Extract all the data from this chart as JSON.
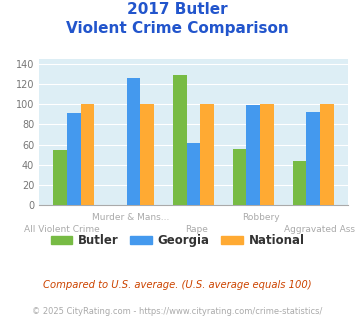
{
  "title_line1": "2017 Butler",
  "title_line2": "Violent Crime Comparison",
  "categories": [
    "All Violent Crime",
    "Murder & Mans...",
    "Rape",
    "Robbery",
    "Aggravated Assault"
  ],
  "butler": [
    55,
    0,
    129,
    56,
    44
  ],
  "georgia": [
    91,
    126,
    62,
    99,
    92
  ],
  "national": [
    100,
    100,
    100,
    100,
    100
  ],
  "butler_color": "#77bb44",
  "georgia_color": "#4499ee",
  "national_color": "#ffaa33",
  "ylim": [
    0,
    145
  ],
  "yticks": [
    0,
    20,
    40,
    60,
    80,
    100,
    120,
    140
  ],
  "bg_color": "#ddeef5",
  "title_color": "#2255cc",
  "xlabel_color": "#aaaaaa",
  "footer1": "Compared to U.S. average. (U.S. average equals 100)",
  "footer2": "© 2025 CityRating.com - https://www.cityrating.com/crime-statistics/",
  "footer1_color": "#cc4400",
  "footer2_color": "#aaaaaa",
  "legend_labels": [
    "Butler",
    "Georgia",
    "National"
  ],
  "top_labels": [
    "",
    "Murder & Mans...",
    "",
    "Robbery",
    ""
  ],
  "bot_labels": [
    "All Violent Crime",
    "",
    "Rape",
    "",
    "Aggravated Assault"
  ]
}
